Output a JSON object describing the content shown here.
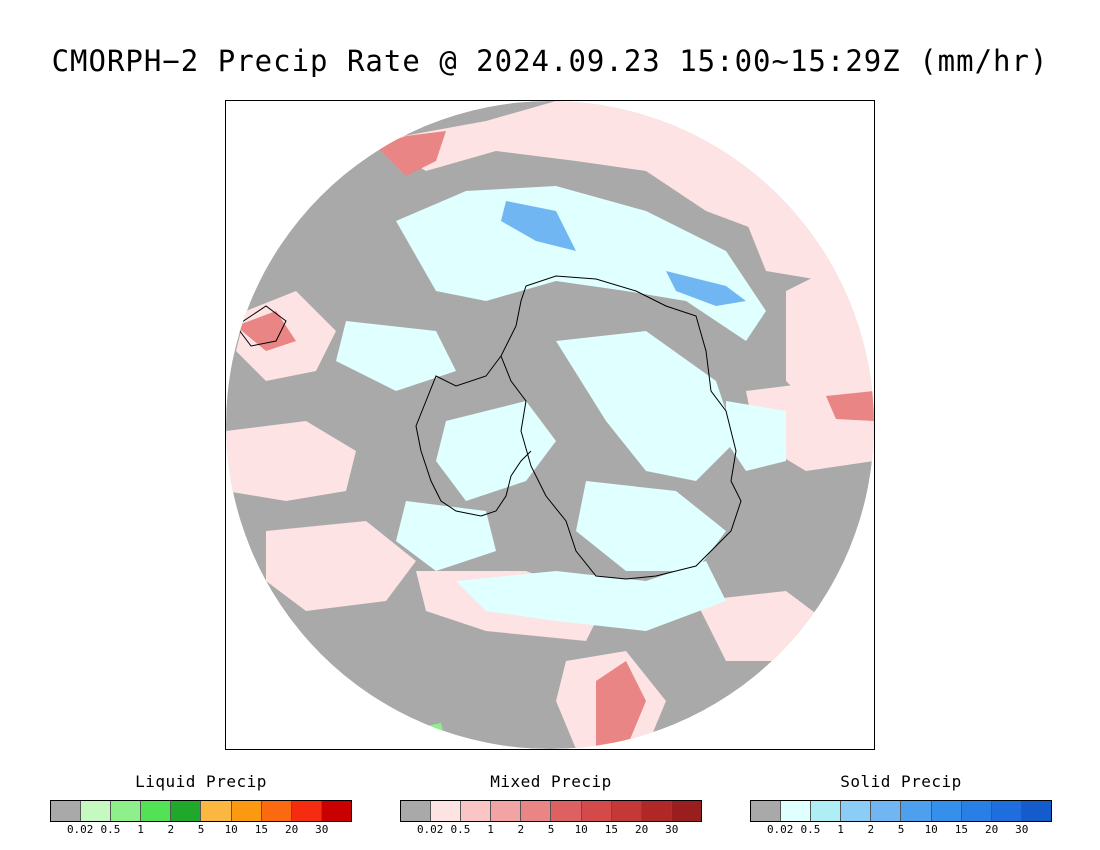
{
  "title": "CMORPH−2 Precip Rate @ 2024.09.23 15:00~15:29Z (mm/hr)",
  "map": {
    "projection": "south-polar-stereographic",
    "colors": {
      "background": "#ffffff",
      "no_precip": "#a9a9a9",
      "continent_outline": "#000000"
    }
  },
  "legends": [
    {
      "title": "Liquid Precip",
      "colors": [
        "#a9a9a9",
        "#c6f8c2",
        "#8ef08a",
        "#52e254",
        "#1fa82a",
        "#fbb840",
        "#fb9a10",
        "#fb6a10",
        "#f52c10",
        "#c80000"
      ],
      "ticks": [
        "0.02",
        "0.5",
        "1",
        "2",
        "5",
        "10",
        "15",
        "20",
        "30"
      ]
    },
    {
      "title": "Mixed Precip",
      "colors": [
        "#a9a9a9",
        "#fde3e3",
        "#f9c5c5",
        "#f2a3a3",
        "#ea8585",
        "#de6161",
        "#d44a4a",
        "#c53838",
        "#b02727",
        "#9a1e1e"
      ],
      "ticks": [
        "0.02",
        "0.5",
        "1",
        "2",
        "5",
        "10",
        "15",
        "20",
        "30"
      ]
    },
    {
      "title": "Solid Precip",
      "colors": [
        "#a9a9a9",
        "#e0ffff",
        "#b0eef6",
        "#8ccdf7",
        "#70b6f3",
        "#4da0ee",
        "#3490ea",
        "#2a7fe6",
        "#1f6edd",
        "#145ccc"
      ],
      "ticks": [
        "0.02",
        "0.5",
        "1",
        "2",
        "5",
        "10",
        "15",
        "20",
        "30"
      ]
    }
  ]
}
